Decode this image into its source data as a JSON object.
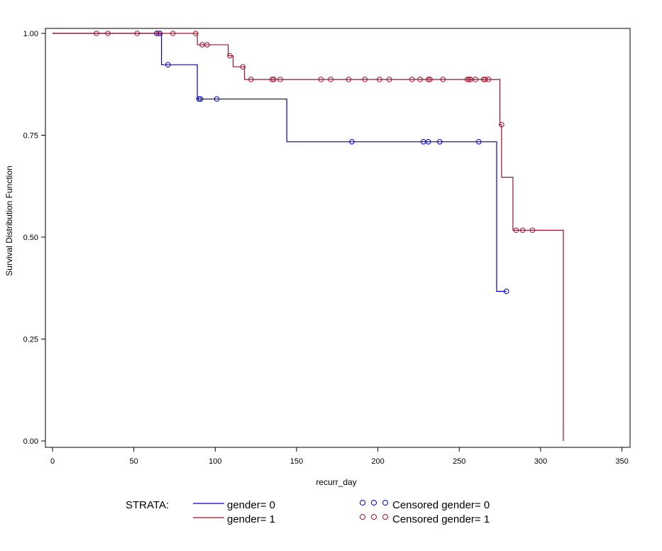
{
  "chart_data": {
    "type": "line",
    "subtype": "kaplan-meier step",
    "xlabel": "recurr_day",
    "ylabel": "Survival Distribution Function",
    "xlim": [
      0,
      350
    ],
    "ylim": [
      0,
      1
    ],
    "x_ticks": [
      "0",
      "50",
      "100",
      "150",
      "200",
      "250",
      "300",
      "350"
    ],
    "y_ticks": [
      "0.00",
      "0.25",
      "0.50",
      "0.75",
      "1.00"
    ],
    "grid": false,
    "series": [
      {
        "name": "gender=0",
        "color": "#0000cc",
        "steps": [
          [
            0,
            1.0
          ],
          [
            67,
            0.923
          ],
          [
            89,
            0.839
          ],
          [
            144,
            0.734
          ],
          [
            273,
            0.367
          ],
          [
            279,
            0.367
          ]
        ],
        "censored": [
          [
            64,
            1.0
          ],
          [
            66,
            1.0
          ],
          [
            71,
            0.923
          ],
          [
            90,
            0.839
          ],
          [
            91,
            0.839
          ],
          [
            101,
            0.839
          ],
          [
            184,
            0.734
          ],
          [
            228,
            0.734
          ],
          [
            231,
            0.734
          ],
          [
            238,
            0.734
          ],
          [
            262,
            0.734
          ],
          [
            279,
            0.367
          ]
        ]
      },
      {
        "name": "gender=1",
        "color": "#a0102a",
        "steps": [
          [
            0,
            1.0
          ],
          [
            89,
            0.972
          ],
          [
            108,
            0.945
          ],
          [
            111,
            0.918
          ],
          [
            118,
            0.887
          ],
          [
            275,
            0.776
          ],
          [
            276,
            0.647
          ],
          [
            283,
            0.517
          ],
          [
            314,
            0.0
          ]
        ],
        "censored": [
          [
            27,
            1.0
          ],
          [
            34,
            1.0
          ],
          [
            52,
            1.0
          ],
          [
            65,
            1.0
          ],
          [
            74,
            1.0
          ],
          [
            88,
            1.0
          ],
          [
            92,
            0.972
          ],
          [
            95,
            0.972
          ],
          [
            109,
            0.945
          ],
          [
            117,
            0.918
          ],
          [
            122,
            0.887
          ],
          [
            135,
            0.887
          ],
          [
            136,
            0.887
          ],
          [
            140,
            0.887
          ],
          [
            165,
            0.887
          ],
          [
            171,
            0.887
          ],
          [
            182,
            0.887
          ],
          [
            192,
            0.887
          ],
          [
            201,
            0.887
          ],
          [
            207,
            0.887
          ],
          [
            221,
            0.887
          ],
          [
            226,
            0.887
          ],
          [
            231,
            0.887
          ],
          [
            232,
            0.887
          ],
          [
            240,
            0.887
          ],
          [
            255,
            0.887
          ],
          [
            256,
            0.887
          ],
          [
            257,
            0.887
          ],
          [
            260,
            0.887
          ],
          [
            265,
            0.887
          ],
          [
            266,
            0.887
          ],
          [
            268,
            0.887
          ],
          [
            276,
            0.776
          ],
          [
            285,
            0.517
          ],
          [
            289,
            0.517
          ],
          [
            295,
            0.517
          ]
        ]
      }
    ],
    "legend": {
      "position": "bottom",
      "title": "STRATA:",
      "line_entries": [
        "gender= 0",
        "gender= 1"
      ],
      "censored_entries": [
        "Censored gender= 0",
        "Censored gender= 1"
      ]
    }
  }
}
